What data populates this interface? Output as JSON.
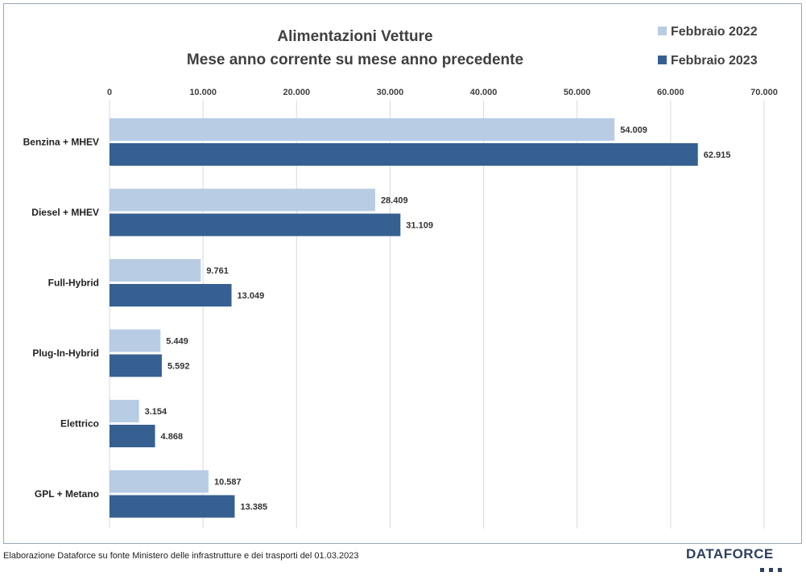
{
  "chart_data": {
    "type": "bar",
    "orientation": "horizontal",
    "title": "Alimentazioni Vetture",
    "subtitle": "Mese anno corrente su mese anno precedente",
    "categories": [
      "Benzina + MHEV",
      "Diesel + MHEV",
      "Full-Hybrid",
      "Plug-In-Hybrid",
      "Elettrico",
      "GPL + Metano"
    ],
    "series": [
      {
        "name": "Febbraio 2022",
        "color": "#b8cce4",
        "values": [
          54009,
          28409,
          9761,
          5449,
          3154,
          10587
        ],
        "labels": [
          "54.009",
          "28.409",
          "9.761",
          "5.449",
          "3.154",
          "10.587"
        ]
      },
      {
        "name": "Febbraio 2023",
        "color": "#366092",
        "values": [
          62915,
          31109,
          13049,
          5592,
          4868,
          13385
        ],
        "labels": [
          "62.915",
          "31.109",
          "13.049",
          "5.592",
          "4.868",
          "13.385"
        ]
      }
    ],
    "xlim": [
      0,
      70000
    ],
    "xticks": [
      0,
      10000,
      20000,
      30000,
      40000,
      50000,
      60000,
      70000
    ],
    "xtick_labels": [
      "0",
      "10.000",
      "20.000",
      "30.000",
      "40.000",
      "50.000",
      "60.000",
      "70.000"
    ],
    "xaxis_position": "top",
    "grid": true,
    "legend": "top-right"
  },
  "footer": {
    "note": "Elaborazione Dataforce su fonte Ministero delle infrastrutture e dei trasporti del 01.03.2023",
    "brand": "DATAFORCE"
  }
}
